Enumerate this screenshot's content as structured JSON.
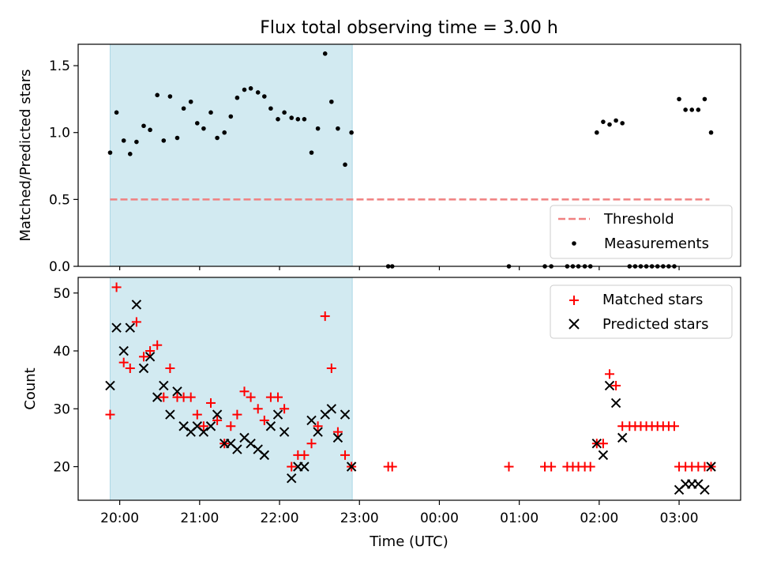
{
  "title": "Flux total observing time = 3.00 h",
  "colors": {
    "shade": "#add8e6",
    "threshold": "#f08080",
    "measurement": "#000000",
    "matched": "#ff0000",
    "predicted": "#000000"
  },
  "chart_data": [
    {
      "type": "scatter",
      "ylabel": "Matched/Predicted stars",
      "ylim": [
        0,
        1.66
      ],
      "yticks": [
        0.0,
        0.5,
        1.0,
        1.5
      ],
      "ytick_labels": [
        "0.0",
        "0.5",
        "1.0",
        "1.5"
      ],
      "xlim": [
        19.48,
        27.77
      ],
      "xticks": [
        20,
        21,
        22,
        23,
        24,
        25,
        26,
        27
      ],
      "shaded_span": [
        19.88,
        22.91
      ],
      "legend": {
        "placement": "lower-right",
        "entries": [
          "Threshold",
          "Measurements"
        ]
      },
      "threshold": {
        "name": "Threshold",
        "value": 0.5,
        "x_range": [
          19.88,
          27.38
        ]
      },
      "series": [
        {
          "name": "Measurements",
          "points": [
            [
              19.88,
              0.85
            ],
            [
              19.96,
              1.15
            ],
            [
              20.05,
              0.94
            ],
            [
              20.13,
              0.84
            ],
            [
              20.21,
              0.93
            ],
            [
              20.3,
              1.05
            ],
            [
              20.38,
              1.02
            ],
            [
              20.47,
              1.28
            ],
            [
              20.55,
              0.94
            ],
            [
              20.63,
              1.27
            ],
            [
              20.72,
              0.96
            ],
            [
              20.8,
              1.18
            ],
            [
              20.89,
              1.23
            ],
            [
              20.97,
              1.07
            ],
            [
              21.05,
              1.03
            ],
            [
              21.14,
              1.15
            ],
            [
              21.22,
              0.96
            ],
            [
              21.31,
              1.0
            ],
            [
              21.39,
              1.12
            ],
            [
              21.47,
              1.26
            ],
            [
              21.56,
              1.32
            ],
            [
              21.64,
              1.33
            ],
            [
              21.73,
              1.3
            ],
            [
              21.81,
              1.27
            ],
            [
              21.89,
              1.18
            ],
            [
              21.98,
              1.1
            ],
            [
              22.06,
              1.15
            ],
            [
              22.15,
              1.11
            ],
            [
              22.23,
              1.1
            ],
            [
              22.31,
              1.1
            ],
            [
              22.4,
              0.85
            ],
            [
              22.48,
              1.03
            ],
            [
              22.57,
              1.59
            ],
            [
              22.65,
              1.23
            ],
            [
              22.73,
              1.03
            ],
            [
              22.82,
              0.76
            ],
            [
              22.9,
              1.0
            ],
            [
              23.36,
              0.0
            ],
            [
              23.41,
              0.0
            ],
            [
              24.87,
              0.0
            ],
            [
              25.32,
              0.0
            ],
            [
              25.4,
              0.0
            ],
            [
              25.6,
              0.0
            ],
            [
              25.67,
              0.0
            ],
            [
              25.74,
              0.0
            ],
            [
              25.82,
              0.0
            ],
            [
              25.89,
              0.0
            ],
            [
              25.97,
              1.0
            ],
            [
              26.05,
              1.08
            ],
            [
              26.13,
              1.06
            ],
            [
              26.21,
              1.09
            ],
            [
              26.29,
              1.07
            ],
            [
              26.38,
              0.0
            ],
            [
              26.45,
              0.0
            ],
            [
              26.52,
              0.0
            ],
            [
              26.59,
              0.0
            ],
            [
              26.66,
              0.0
            ],
            [
              26.73,
              0.0
            ],
            [
              26.8,
              0.0
            ],
            [
              26.87,
              0.0
            ],
            [
              26.94,
              0.0
            ],
            [
              27.0,
              1.25
            ],
            [
              27.08,
              1.17
            ],
            [
              27.16,
              1.17
            ],
            [
              27.24,
              1.17
            ],
            [
              27.32,
              1.25
            ],
            [
              27.4,
              1.0
            ]
          ]
        }
      ]
    },
    {
      "type": "scatter",
      "xlabel": "Time (UTC)",
      "ylabel": "Count",
      "ylim": [
        14.2,
        52.7
      ],
      "yticks": [
        20,
        30,
        40,
        50
      ],
      "ytick_labels": [
        "20",
        "30",
        "40",
        "50"
      ],
      "xlim": [
        19.48,
        27.77
      ],
      "xticks": [
        20,
        21,
        22,
        23,
        24,
        25,
        26,
        27
      ],
      "xtick_labels": [
        "20:00",
        "21:00",
        "22:00",
        "23:00",
        "00:00",
        "01:00",
        "02:00",
        "03:00"
      ],
      "shaded_span": [
        19.88,
        22.91
      ],
      "legend": {
        "placement": "upper-right",
        "entries": [
          "Matched stars",
          "Predicted stars"
        ]
      },
      "series": [
        {
          "name": "Matched stars",
          "marker": "plus",
          "points": [
            [
              19.88,
              29
            ],
            [
              19.96,
              51
            ],
            [
              20.05,
              38
            ],
            [
              20.13,
              37
            ],
            [
              20.21,
              45
            ],
            [
              20.3,
              39
            ],
            [
              20.38,
              40
            ],
            [
              20.47,
              41
            ],
            [
              20.55,
              32
            ],
            [
              20.63,
              37
            ],
            [
              20.72,
              32
            ],
            [
              20.8,
              32
            ],
            [
              20.89,
              32
            ],
            [
              20.97,
              29
            ],
            [
              21.05,
              27
            ],
            [
              21.14,
              31
            ],
            [
              21.22,
              28
            ],
            [
              21.31,
              24
            ],
            [
              21.39,
              27
            ],
            [
              21.47,
              29
            ],
            [
              21.56,
              33
            ],
            [
              21.64,
              32
            ],
            [
              21.73,
              30
            ],
            [
              21.81,
              28
            ],
            [
              21.89,
              32
            ],
            [
              21.98,
              32
            ],
            [
              22.06,
              30
            ],
            [
              22.15,
              20
            ],
            [
              22.23,
              22
            ],
            [
              22.31,
              22
            ],
            [
              22.4,
              24
            ],
            [
              22.48,
              27
            ],
            [
              22.57,
              46
            ],
            [
              22.65,
              37
            ],
            [
              22.73,
              26
            ],
            [
              22.82,
              22
            ],
            [
              22.9,
              20
            ],
            [
              23.36,
              20
            ],
            [
              23.41,
              20
            ],
            [
              24.87,
              20
            ],
            [
              25.32,
              20
            ],
            [
              25.4,
              20
            ],
            [
              25.6,
              20
            ],
            [
              25.67,
              20
            ],
            [
              25.74,
              20
            ],
            [
              25.82,
              20
            ],
            [
              25.89,
              20
            ],
            [
              25.97,
              24
            ],
            [
              26.05,
              24
            ],
            [
              26.13,
              36
            ],
            [
              26.21,
              34
            ],
            [
              26.29,
              27
            ],
            [
              26.38,
              27
            ],
            [
              26.45,
              27
            ],
            [
              26.52,
              27
            ],
            [
              26.59,
              27
            ],
            [
              26.66,
              27
            ],
            [
              26.73,
              27
            ],
            [
              26.8,
              27
            ],
            [
              26.87,
              27
            ],
            [
              26.94,
              27
            ],
            [
              27.0,
              20
            ],
            [
              27.08,
              20
            ],
            [
              27.16,
              20
            ],
            [
              27.24,
              20
            ],
            [
              27.32,
              20
            ],
            [
              27.4,
              20
            ]
          ]
        },
        {
          "name": "Predicted stars",
          "marker": "cross",
          "points": [
            [
              19.88,
              34
            ],
            [
              19.96,
              44
            ],
            [
              20.05,
              40
            ],
            [
              20.13,
              44
            ],
            [
              20.21,
              48
            ],
            [
              20.3,
              37
            ],
            [
              20.38,
              39
            ],
            [
              20.47,
              32
            ],
            [
              20.55,
              34
            ],
            [
              20.63,
              29
            ],
            [
              20.72,
              33
            ],
            [
              20.8,
              27
            ],
            [
              20.89,
              26
            ],
            [
              20.97,
              27
            ],
            [
              21.05,
              26
            ],
            [
              21.14,
              27
            ],
            [
              21.22,
              29
            ],
            [
              21.31,
              24
            ],
            [
              21.39,
              24
            ],
            [
              21.47,
              23
            ],
            [
              21.56,
              25
            ],
            [
              21.64,
              24
            ],
            [
              21.73,
              23
            ],
            [
              21.81,
              22
            ],
            [
              21.89,
              27
            ],
            [
              21.98,
              29
            ],
            [
              22.06,
              26
            ],
            [
              22.15,
              18
            ],
            [
              22.23,
              20
            ],
            [
              22.31,
              20
            ],
            [
              22.4,
              28
            ],
            [
              22.48,
              26
            ],
            [
              22.57,
              29
            ],
            [
              22.65,
              30
            ],
            [
              22.73,
              25
            ],
            [
              22.82,
              29
            ],
            [
              22.9,
              20
            ],
            [
              25.97,
              24
            ],
            [
              26.05,
              22
            ],
            [
              26.13,
              34
            ],
            [
              26.21,
              31
            ],
            [
              26.29,
              25
            ],
            [
              27.0,
              16
            ],
            [
              27.08,
              17
            ],
            [
              27.16,
              17
            ],
            [
              27.24,
              17
            ],
            [
              27.32,
              16
            ],
            [
              27.4,
              20
            ]
          ]
        }
      ]
    }
  ]
}
